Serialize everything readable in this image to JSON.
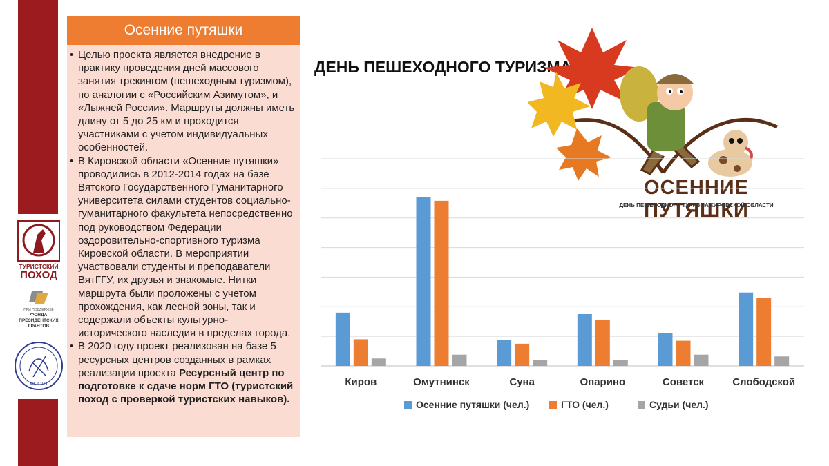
{
  "panel": {
    "header": "Осенние путяшки",
    "bullet1": "Целью проекта является внедрение в практику проведения дней массового занятия трекингом (пешеходным туризмом), по аналогии с «Российским Азимутом», и «Лыжней России». Маршруты должны иметь длину от 5 до 25 км и проходится участниками с учетом индивидуальных особенностей.",
    "bullet2": "В Кировской области «Осенние путяшки» проводились в 2012-2014 годах на базе Вятского Государственного Гуманитарного университета силами студентов социально-гуманитарного факультета непосредственно под руководством Федерации оздоровительно-спортивного туризма Кировской области. В мероприятии участвовали студенты и преподаватели ВятГГУ, их друзья и знакомые. Нитки маршрута были проложены с учетом прохождения, как лесной зоны, так и содержали объекты культурно-исторического наследия в пределах города.",
    "bullet3_prefix": "В 2020 году проект реализован на базе 5 ресурсных центров созданных в рамках реализации проекта ",
    "bullet3_bold": "Ресурсный центр по подготовке к сдаче норм ГТО (туристский поход с проверкой туристских навыков)."
  },
  "slide_title": "ДЕНЬ ПЕШЕХОДНОГО ТУРИЗМА",
  "logo": {
    "title": "ОСЕННИЕ ПУТЯШКИ",
    "subtitle": "ДЕНЬ ПЕШЕХОДНОГО ТУРИЗМА КИРОВСКОЙ ОБЛАСТИ"
  },
  "side_logos": {
    "tourist_line1": "ТУРИСТСКИЙ",
    "tourist_line2": "ПОХОД",
    "fund_line1": "ПРИ ПОДДЕРЖКЕ",
    "fund_line2": "ФОНДА",
    "fund_line3": "ПРЕЗИДЕНТСКИХ",
    "fund_line4": "ГРАНТОВ",
    "fosto": "ФОСТО"
  },
  "colors": {
    "dark_red": "#9b1b1f",
    "orange": "#ee7d32",
    "panel_bg": "#fbdcd2",
    "series_blue": "#5b9bd5",
    "series_orange": "#ed7d31",
    "series_gray": "#a5a5a5"
  },
  "chart_data": {
    "type": "bar",
    "categories": [
      "Киров",
      "Омутнинск",
      "Суна",
      "Опарино",
      "Советск",
      "Слободской"
    ],
    "series": [
      {
        "name": "Осенние путяшки (чел.)",
        "values": [
          180,
          570,
          88,
          175,
          110,
          248
        ]
      },
      {
        "name": "ГТО (чел.)",
        "values": [
          90,
          558,
          75,
          155,
          85,
          230
        ]
      },
      {
        "name": "Судьи (чел.)",
        "values": [
          25,
          38,
          20,
          20,
          38,
          32
        ]
      }
    ],
    "ylim": [
      0,
      700
    ],
    "y_gridlines": [
      0,
      100,
      200,
      300,
      400,
      500,
      600,
      700
    ],
    "y_tick_labels_visible": false,
    "grid": true,
    "legend": "bottom"
  }
}
